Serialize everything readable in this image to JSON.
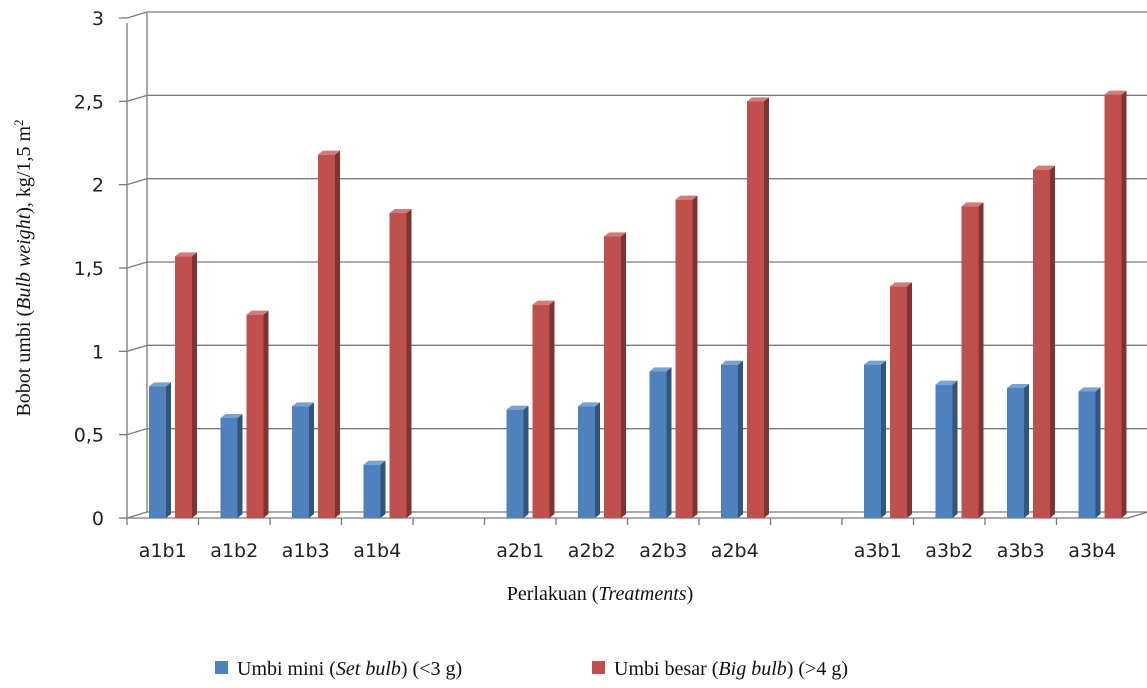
{
  "chart_data": {
    "type": "bar",
    "style": "3d-clustered-column",
    "title": "",
    "xlabel": {
      "text": "Perlakuan (",
      "italic": "Treatments",
      "tail": ")"
    },
    "ylabel": {
      "text": "Bobot umbi (",
      "italic": "Bulb weight",
      "tail": "), kg/1,5 m",
      "sup": "2"
    },
    "ylim": [
      0,
      3
    ],
    "yticks": [
      {
        "value": 0,
        "label": "0"
      },
      {
        "value": 0.5,
        "label": "0,5"
      },
      {
        "value": 1,
        "label": "1"
      },
      {
        "value": 1.5,
        "label": "1,5"
      },
      {
        "value": 2,
        "label": "2"
      },
      {
        "value": 2.5,
        "label": "2,5"
      },
      {
        "value": 3,
        "label": "3"
      }
    ],
    "grid": true,
    "legend_position": "bottom",
    "categories": [
      "a1b1",
      "a1b2",
      "a1b3",
      "a1b4",
      "",
      "a2b1",
      "a2b2",
      "a2b3",
      "a2b4",
      "",
      "a3b1",
      "a3b2",
      "a3b3",
      "a3b4"
    ],
    "series": [
      {
        "name": "Umbi mini (Set bulb) (<3 g)",
        "legend": {
          "pre": "Umbi mini (",
          "italic": "Set bulb",
          "post": ") (<3 g)"
        },
        "color": "#4f81bd",
        "values": [
          0.79,
          0.6,
          0.67,
          0.32,
          null,
          0.65,
          0.67,
          0.88,
          0.92,
          null,
          0.92,
          0.8,
          0.78,
          0.76
        ]
      },
      {
        "name": "Umbi besar (Big bulb) (>4 g)",
        "legend": {
          "pre": "Umbi besar (",
          "italic": "Big bulb",
          "post": ") (>4 g)"
        },
        "color": "#c0504d",
        "values": [
          1.57,
          1.22,
          2.18,
          1.83,
          null,
          1.28,
          1.69,
          1.91,
          2.5,
          null,
          1.39,
          1.87,
          2.09,
          2.54
        ]
      }
    ]
  }
}
